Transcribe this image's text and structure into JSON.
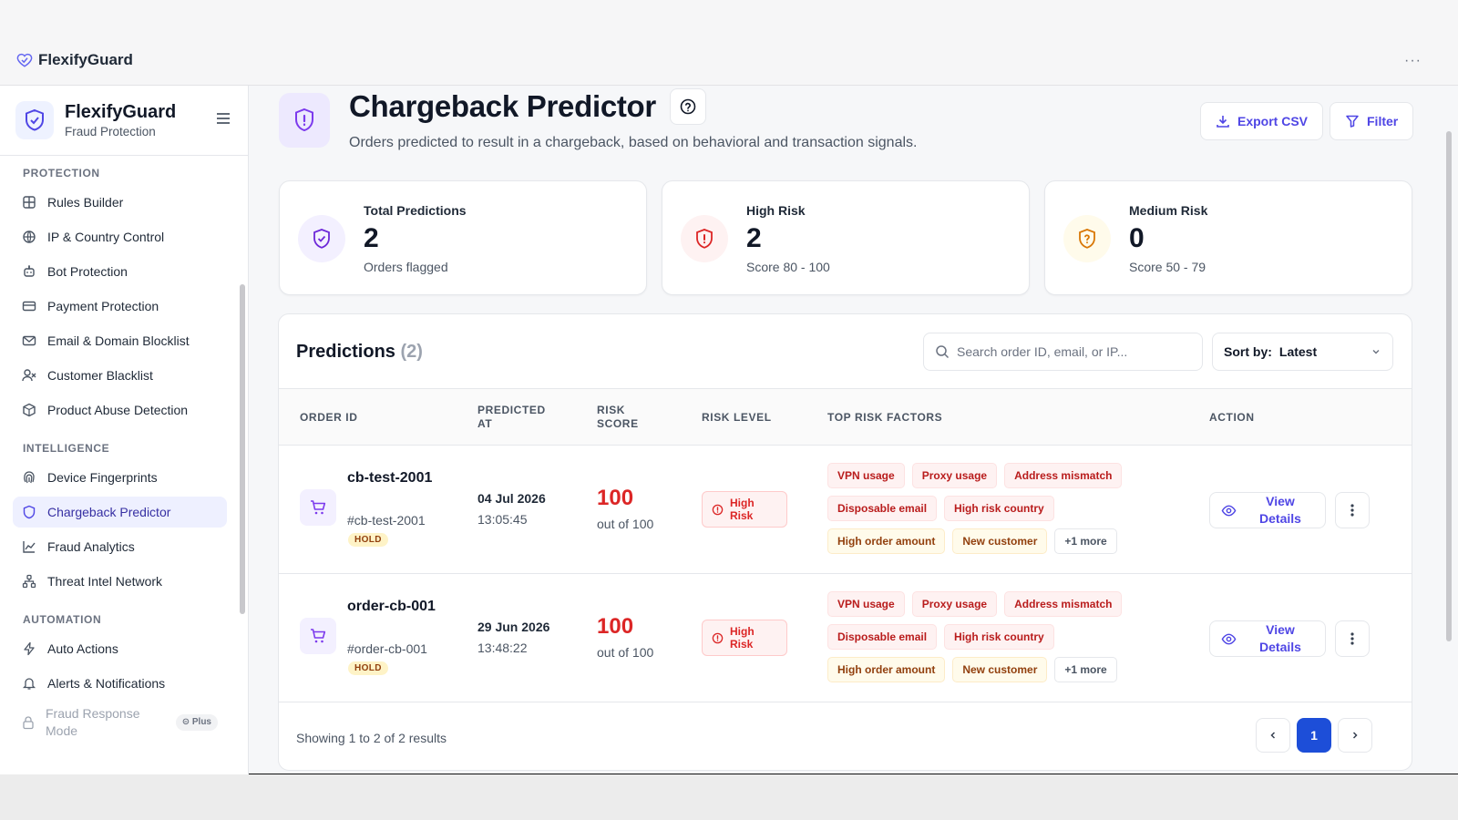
{
  "topbar": {
    "brand": "FlexifyGuard",
    "more": "···"
  },
  "sidebar": {
    "title": "FlexifyGuard",
    "subtitle": "Fraud Protection",
    "sections": [
      {
        "label": "Protection",
        "items": [
          "Rules Builder",
          "IP & Country Control",
          "Bot Protection",
          "Payment Protection",
          "Email & Domain Blocklist",
          "Customer Blacklist",
          "Product Abuse Detection"
        ]
      },
      {
        "label": "Intelligence",
        "items": [
          "Device Fingerprints",
          "Chargeback Predictor",
          "Fraud Analytics",
          "Threat Intel Network"
        ]
      },
      {
        "label": "Automation",
        "items": [
          "Auto Actions",
          "Alerts & Notifications",
          "Fraud Response Mode"
        ]
      }
    ],
    "active_item": "Chargeback Predictor",
    "plus_badge": "Plus"
  },
  "header": {
    "title": "Chargeback Predictor",
    "description": "Orders predicted to result in a chargeback, based on behavioral and transaction signals.",
    "export_label": "Export CSV",
    "filter_label": "Filter"
  },
  "stats": [
    {
      "label": "Total Predictions",
      "value": "2",
      "note": "Orders flagged"
    },
    {
      "label": "High Risk",
      "value": "2",
      "note": "Score 80 - 100"
    },
    {
      "label": "Medium Risk",
      "value": "0",
      "note": "Score 50 - 79"
    }
  ],
  "predictions": {
    "title": "Predictions",
    "count": "(2)",
    "search_placeholder": "Search order ID, email, or IP...",
    "sort_label": "Sort by:",
    "sort_value": "Latest",
    "columns": [
      "Order ID",
      "Predicted At",
      "Risk Score",
      "Risk Level",
      "Top Risk Factors",
      "Action"
    ],
    "rows": [
      {
        "order_name": "cb-test-2001",
        "order_ref": "#cb-test-2001",
        "status": "HOLD",
        "date": "04 Jul 2026",
        "time": "13:05:45",
        "score": "100",
        "score_out": "out of 100",
        "risk_level": "High Risk",
        "factors": [
          "VPN usage",
          "Proxy usage",
          "Address mismatch",
          "Disposable email",
          "High risk country",
          "High order amount",
          "New customer",
          "+1 more"
        ],
        "action": "View Details"
      },
      {
        "order_name": "order-cb-001",
        "order_ref": "#order-cb-001",
        "status": "HOLD",
        "date": "29 Jun 2026",
        "time": "13:48:22",
        "score": "100",
        "score_out": "out of 100",
        "risk_level": "High Risk",
        "factors": [
          "VPN usage",
          "Proxy usage",
          "Address mismatch",
          "Disposable email",
          "High risk country",
          "High order amount",
          "New customer",
          "+1 more"
        ],
        "action": "View Details"
      }
    ],
    "footer": "Showing 1 to 2 of 2 results",
    "current_page": "1"
  },
  "colors": {
    "accent": "#4f46e5",
    "danger": "#dc2626",
    "warning": "#d97706",
    "page_active": "#1d4ed8"
  }
}
